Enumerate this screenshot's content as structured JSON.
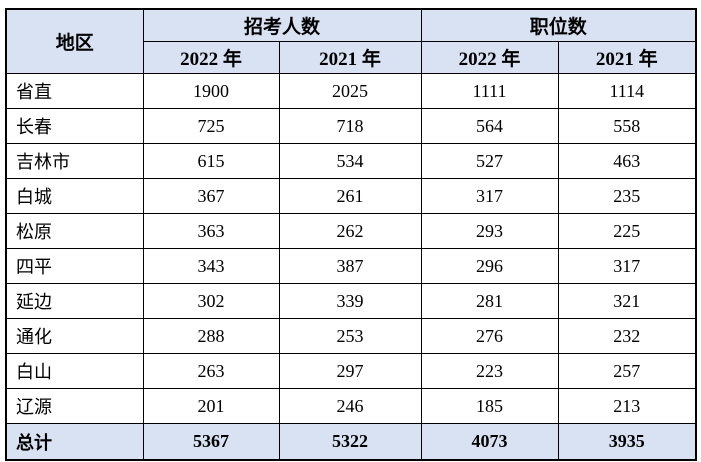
{
  "chart_data": {
    "type": "table",
    "title": "",
    "header": {
      "region": "地区",
      "groups": [
        {
          "label": "招考人数",
          "sub": [
            "2022 年",
            "2021 年"
          ]
        },
        {
          "label": "职位数",
          "sub": [
            "2022 年",
            "2021 年"
          ]
        }
      ]
    },
    "rows": [
      {
        "region": "省直",
        "values": [
          "1900",
          "2025",
          "1111",
          "1114"
        ]
      },
      {
        "region": "长春",
        "values": [
          "725",
          "718",
          "564",
          "558"
        ]
      },
      {
        "region": "吉林市",
        "values": [
          "615",
          "534",
          "527",
          "463"
        ]
      },
      {
        "region": "白城",
        "values": [
          "367",
          "261",
          "317",
          "235"
        ]
      },
      {
        "region": "松原",
        "values": [
          "363",
          "262",
          "293",
          "225"
        ]
      },
      {
        "region": "四平",
        "values": [
          "343",
          "387",
          "296",
          "317"
        ]
      },
      {
        "region": "延边",
        "values": [
          "302",
          "339",
          "281",
          "321"
        ]
      },
      {
        "region": "通化",
        "values": [
          "288",
          "253",
          "276",
          "232"
        ]
      },
      {
        "region": "白山",
        "values": [
          "263",
          "297",
          "223",
          "257"
        ]
      },
      {
        "region": "辽源",
        "values": [
          "201",
          "246",
          "185",
          "213"
        ]
      }
    ],
    "total": {
      "region": "总计",
      "values": [
        "5367",
        "5322",
        "4073",
        "3935"
      ]
    },
    "colors": {
      "header_bg": "#D9E2F3",
      "border": "#000000",
      "text": "#000000",
      "page_bg": "#FFFFFF"
    }
  }
}
